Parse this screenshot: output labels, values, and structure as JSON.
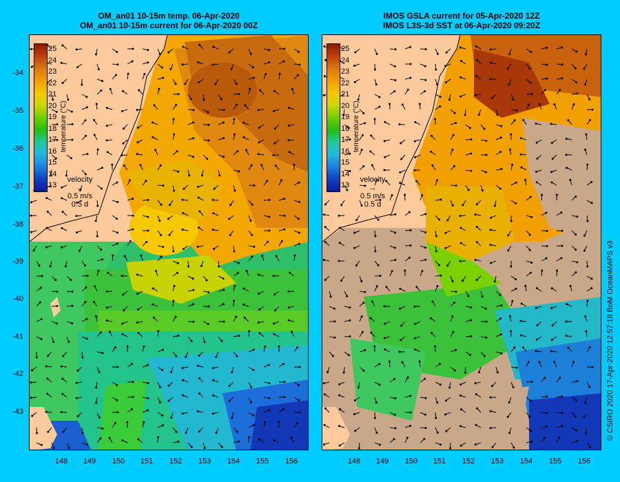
{
  "left": {
    "title1": "OM_an01 10-15m temp. 06-Apr-2020",
    "title2": "OM_an01 10-15m current for 06-Apr-2020 00Z"
  },
  "right": {
    "title1": "IMOS GSLA current for 05-Apr-2020 12Z",
    "title2": "IMOS L3S-3d SST at 06-Apr-2020 09:20Z"
  },
  "yticks": [
    "-34",
    "-35",
    "-36",
    "-37",
    "-38",
    "-39",
    "-40",
    "-41",
    "-42",
    "-43"
  ],
  "xticks": [
    "148",
    "149",
    "150",
    "151",
    "152",
    "153",
    "154",
    "155",
    "156"
  ],
  "colorbar": {
    "ticks": [
      "25",
      "24",
      "23",
      "22",
      "21",
      "20",
      "19",
      "18",
      "17",
      "16",
      "15",
      "14",
      "13"
    ],
    "title": "temperature (°C)",
    "colors": [
      "#8b1a00",
      "#c0400a",
      "#d97a10",
      "#f0a000",
      "#f5c800",
      "#c8d800",
      "#6ccf00",
      "#22c010",
      "#20c8a0",
      "#20b8e0",
      "#1a80e0",
      "#1040c0",
      "#0a1aa0"
    ]
  },
  "velocity": {
    "label": "velocity",
    "speed": "0.5 m/s",
    "time": "0.5 d"
  },
  "credit": "© CSIRO 2020   17-Apr-2020 12:57:18 BoM OceanMAPS v3"
}
